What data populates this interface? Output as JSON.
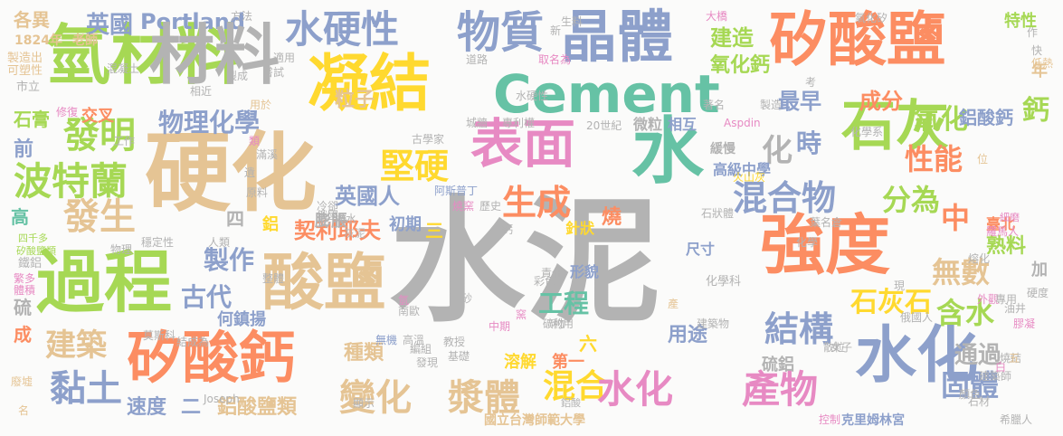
{
  "palette": {
    "teal": "#66c2a5",
    "orange": "#fc8d62",
    "blue": "#8da0cb",
    "pink": "#e78ac3",
    "green": "#a6d854",
    "yellow": "#ffd92f",
    "tan": "#e5c494",
    "gray": "#b3b3b3"
  },
  "words": [
    {
      "text": "水泥",
      "color": "gray"
    },
    {
      "text": "硬化",
      "color": "tan"
    },
    {
      "text": "矽酸鹽",
      "color": "orange"
    },
    {
      "text": "強度",
      "color": "orange"
    },
    {
      "text": "過程",
      "color": "green"
    },
    {
      "text": "氫材料",
      "color": "green"
    },
    {
      "text": "材料",
      "color": "gray"
    },
    {
      "text": "Cement",
      "color": "teal"
    },
    {
      "text": "晶體",
      "color": "blue"
    },
    {
      "text": "凝結",
      "color": "yellow"
    },
    {
      "text": "表面",
      "color": "pink"
    },
    {
      "text": "水",
      "color": "teal"
    },
    {
      "text": "石灰",
      "color": "green"
    },
    {
      "text": "矽酸鈣",
      "color": "orange"
    },
    {
      "text": "酸鹽",
      "color": "tan"
    },
    {
      "text": "水化",
      "color": "blue"
    },
    {
      "text": "水硬性",
      "color": "blue"
    },
    {
      "text": "物質",
      "color": "blue"
    },
    {
      "text": "發明",
      "color": "green"
    },
    {
      "text": "波特蘭",
      "color": "green"
    },
    {
      "text": "發生",
      "color": "tan"
    },
    {
      "text": "堅硬",
      "color": "yellow"
    },
    {
      "text": "生成",
      "color": "orange"
    },
    {
      "text": "混合物",
      "color": "blue"
    },
    {
      "text": "分為",
      "color": "green"
    },
    {
      "text": "性能",
      "color": "orange"
    },
    {
      "text": "中",
      "color": "orange"
    },
    {
      "text": "氧化",
      "color": "green"
    },
    {
      "text": "鈣",
      "color": "green"
    },
    {
      "text": "化",
      "color": "gray"
    },
    {
      "text": "時",
      "color": "blue"
    },
    {
      "text": "建造",
      "color": "green"
    },
    {
      "text": "最早",
      "color": "blue"
    },
    {
      "text": "成分",
      "color": "orange"
    },
    {
      "text": "氧化鈣",
      "color": "green"
    },
    {
      "text": "粒子",
      "color": "tan"
    },
    {
      "text": "物理化學",
      "color": "blue"
    },
    {
      "text": "英國",
      "color": "blue"
    },
    {
      "text": "Portland",
      "color": "blue"
    },
    {
      "text": "各異",
      "color": "tan"
    },
    {
      "text": "1824年",
      "color": "tan"
    },
    {
      "text": "老師",
      "color": "tan"
    },
    {
      "text": "方法",
      "color": "gray"
    },
    {
      "text": "特性",
      "color": "green"
    },
    {
      "text": "年",
      "color": "tan"
    },
    {
      "text": "鋁酸鈣",
      "color": "blue"
    },
    {
      "text": "無數",
      "color": "tan"
    },
    {
      "text": "結構",
      "color": "blue"
    },
    {
      "text": "石灰石",
      "color": "yellow"
    },
    {
      "text": "含水",
      "color": "green"
    },
    {
      "text": "契利耶夫",
      "color": "orange"
    },
    {
      "text": "製作",
      "color": "blue"
    },
    {
      "text": "古代",
      "color": "blue"
    },
    {
      "text": "英國人",
      "color": "blue"
    },
    {
      "text": "黏土",
      "color": "blue"
    },
    {
      "text": "建築",
      "color": "tan"
    },
    {
      "text": "變化",
      "color": "tan"
    },
    {
      "text": "漿體",
      "color": "tan"
    },
    {
      "text": "混合",
      "color": "yellow"
    },
    {
      "text": "水化",
      "color": "pink"
    },
    {
      "text": "產物",
      "color": "pink"
    },
    {
      "text": "固體",
      "color": "blue"
    },
    {
      "text": "通過",
      "color": "gray"
    },
    {
      "text": "工程",
      "color": "teal"
    },
    {
      "text": "用途",
      "color": "blue"
    },
    {
      "text": "種類",
      "color": "tan"
    },
    {
      "text": "溶解",
      "color": "yellow"
    },
    {
      "text": "第一",
      "color": "orange"
    },
    {
      "text": "速度",
      "color": "blue"
    },
    {
      "text": "鋁酸鹽類",
      "color": "tan"
    },
    {
      "text": "二",
      "color": "blue"
    },
    {
      "text": "Joseph",
      "color": "gray"
    },
    {
      "text": "硫鋁",
      "color": "gray"
    },
    {
      "text": "形貌",
      "color": "blue"
    },
    {
      "text": "尺寸",
      "color": "blue"
    },
    {
      "text": "初期",
      "color": "blue"
    },
    {
      "text": "三",
      "color": "yellow"
    },
    {
      "text": "膨脹",
      "color": "gray"
    },
    {
      "text": "四",
      "color": "gray"
    },
    {
      "text": "鋁",
      "color": "yellow"
    },
    {
      "text": "針狀",
      "color": "yellow"
    },
    {
      "text": "燒",
      "color": "orange"
    },
    {
      "text": "高級中學",
      "color": "blue"
    },
    {
      "text": "熟料",
      "color": "green"
    },
    {
      "text": "臺北",
      "color": "orange"
    },
    {
      "text": "加",
      "color": "gray"
    },
    {
      "text": "微粒",
      "color": "gray"
    },
    {
      "text": "相互",
      "color": "blue"
    },
    {
      "text": "前",
      "color": "blue"
    },
    {
      "text": "石膏",
      "color": "green"
    },
    {
      "text": "交叉",
      "color": "orange"
    },
    {
      "text": "高",
      "color": "teal"
    },
    {
      "text": "硫",
      "color": "gray"
    },
    {
      "text": "成",
      "color": "orange"
    },
    {
      "text": "何鎮揚",
      "color": "blue"
    },
    {
      "text": "六",
      "color": "yellow"
    },
    {
      "text": "製造出",
      "color": "tan"
    },
    {
      "text": "可塑性",
      "color": "tan"
    },
    {
      "text": "市立",
      "color": "gray"
    },
    {
      "text": "修復",
      "color": "pink"
    },
    {
      "text": "工作",
      "color": "gray"
    },
    {
      "text": "四千多",
      "color": "green"
    },
    {
      "text": "矽酸鹽類",
      "color": "green"
    },
    {
      "text": "物理",
      "color": "gray"
    },
    {
      "text": "穩定性",
      "color": "gray"
    },
    {
      "text": "鐵鋁",
      "color": "gray"
    },
    {
      "text": "繁多",
      "color": "pink"
    },
    {
      "text": "體積",
      "color": "pink"
    },
    {
      "text": "名",
      "color": "tan"
    },
    {
      "text": "廢墟",
      "color": "tan"
    },
    {
      "text": "水硬性",
      "color": "gray"
    },
    {
      "text": "城牆",
      "color": "gray"
    },
    {
      "text": "專利權",
      "color": "gray"
    },
    {
      "text": "20世紀",
      "color": "gray"
    },
    {
      "text": "古學家",
      "color": "gray"
    },
    {
      "text": "Aspdin",
      "color": "pink"
    },
    {
      "text": "化學系",
      "color": "gray"
    },
    {
      "text": "緩慢",
      "color": "gray"
    },
    {
      "text": "火山灰",
      "color": "yellow"
    },
    {
      "text": "阿斯普丁",
      "color": "blue"
    },
    {
      "text": "燒窯",
      "color": "pink"
    },
    {
      "text": "歷史",
      "color": "gray"
    },
    {
      "text": "石狀體",
      "color": "gray"
    },
    {
      "text": "葉名倉",
      "color": "gray"
    },
    {
      "text": "細磨",
      "color": "pink"
    },
    {
      "text": "羅馬人",
      "color": "pink"
    },
    {
      "text": "化學科",
      "color": "gray"
    },
    {
      "text": "國立台灣師範大學",
      "color": "tan"
    },
    {
      "text": "克里姆林宮",
      "color": "blue"
    },
    {
      "text": "希臘人",
      "color": "gray"
    },
    {
      "text": "鋁酸",
      "color": "gray"
    },
    {
      "text": "基礎",
      "color": "gray"
    },
    {
      "text": "教授",
      "color": "gray"
    },
    {
      "text": "結成為",
      "color": "gray"
    },
    {
      "text": "莫斯科",
      "color": "gray"
    },
    {
      "text": "無機",
      "color": "blue"
    },
    {
      "text": "高溫",
      "color": "gray"
    },
    {
      "text": "南歐",
      "color": "gray"
    },
    {
      "text": "中期",
      "color": "pink"
    },
    {
      "text": "利用",
      "color": "gray"
    },
    {
      "text": "建築物",
      "color": "gray"
    },
    {
      "text": "女子",
      "color": "gray"
    },
    {
      "text": "外觀",
      "color": "pink"
    },
    {
      "text": "石材",
      "color": "gray"
    },
    {
      "text": "顏色",
      "color": "gray"
    },
    {
      "text": "控制",
      "color": "pink"
    },
    {
      "text": "散粒",
      "color": "gray"
    },
    {
      "text": "專用",
      "color": "gray"
    },
    {
      "text": "油井",
      "color": "gray"
    },
    {
      "text": "硬度",
      "color": "gray"
    },
    {
      "text": "膠凝",
      "color": "pink"
    },
    {
      "text": "建築師",
      "color": "gray"
    },
    {
      "text": "熔化",
      "color": "gray"
    },
    {
      "text": "俄國人",
      "color": "gray"
    },
    {
      "text": "大橋",
      "color": "pink"
    },
    {
      "text": "取名為",
      "color": "pink"
    },
    {
      "text": "道路",
      "color": "gray"
    },
    {
      "text": "適用",
      "color": "gray"
    },
    {
      "text": "嘗試",
      "color": "gray"
    },
    {
      "text": "製成",
      "color": "gray"
    },
    {
      "text": "相近",
      "color": "gray"
    },
    {
      "text": "用於",
      "color": "tan"
    },
    {
      "text": "混凝土",
      "color": "gray"
    },
    {
      "text": "著名",
      "color": "gray"
    },
    {
      "text": "製造",
      "color": "gray"
    },
    {
      "text": "考",
      "color": "gray"
    },
    {
      "text": "快",
      "color": "gray"
    },
    {
      "text": "低熱",
      "color": "tan"
    },
    {
      "text": "作",
      "color": "gray"
    },
    {
      "text": "氧化矽",
      "color": "gray"
    },
    {
      "text": "彩色",
      "color": "gray"
    },
    {
      "text": "窯",
      "color": "pink"
    },
    {
      "text": "新",
      "color": "gray"
    },
    {
      "text": "遺",
      "color": "gray"
    },
    {
      "text": "原料",
      "color": "gray"
    },
    {
      "text": "滿溪",
      "color": "gray"
    },
    {
      "text": "類",
      "color": "pink"
    },
    {
      "text": "俄國",
      "color": "gray"
    },
    {
      "text": "摻水",
      "color": "gray"
    },
    {
      "text": "冷卻",
      "color": "gray"
    },
    {
      "text": "灰泥",
      "color": "gray"
    },
    {
      "text": "編組",
      "color": "gray"
    },
    {
      "text": "發現",
      "color": "gray"
    },
    {
      "text": "人類",
      "color": "gray"
    },
    {
      "text": "整體",
      "color": "gray"
    },
    {
      "text": "責任",
      "color": "gray"
    },
    {
      "text": "礦物",
      "color": "gray"
    },
    {
      "text": "燒結",
      "color": "gray"
    },
    {
      "text": "化學",
      "color": "gray"
    },
    {
      "text": "位",
      "color": "tan"
    },
    {
      "text": "五",
      "color": "tan"
    },
    {
      "text": "白",
      "color": "pink"
    },
    {
      "text": "砂",
      "color": "gray"
    },
    {
      "text": "鈣",
      "color": "gray"
    },
    {
      "text": "產",
      "color": "tan"
    },
    {
      "text": "現",
      "color": "gray"
    },
    {
      "text": "顯示",
      "color": "gray"
    },
    {
      "text": "氫",
      "color": "pink"
    },
    {
      "text": "生料",
      "color": "gray"
    }
  ]
}
